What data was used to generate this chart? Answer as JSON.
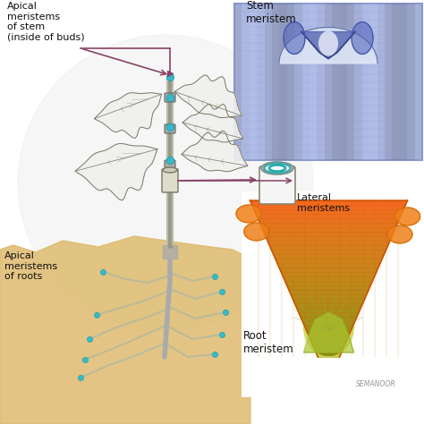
{
  "background_color": "#ffffff",
  "soil_color": "#deba6e",
  "soil_alpha": 0.85,
  "circle_bg_color": "#e8e8e8",
  "labels": {
    "apical_stem": "Apical\nmeristems\nof stem\n(inside of buds)",
    "stem_meristem": "Stem\nmeristem",
    "lateral_meristems": "Lateral\nmeristems",
    "apical_roots": "Apical\nmeristems\nof roots",
    "root_meristem": "Root\nmeristem"
  },
  "watermark": "SEMANOOR",
  "stem_color": "#888877",
  "leaf_fill": "#f0f0ee",
  "leaf_edge": "#777766",
  "bud_color": "#44bbcc",
  "arrow_color": "#884466",
  "root_fill": "#ccccaa"
}
